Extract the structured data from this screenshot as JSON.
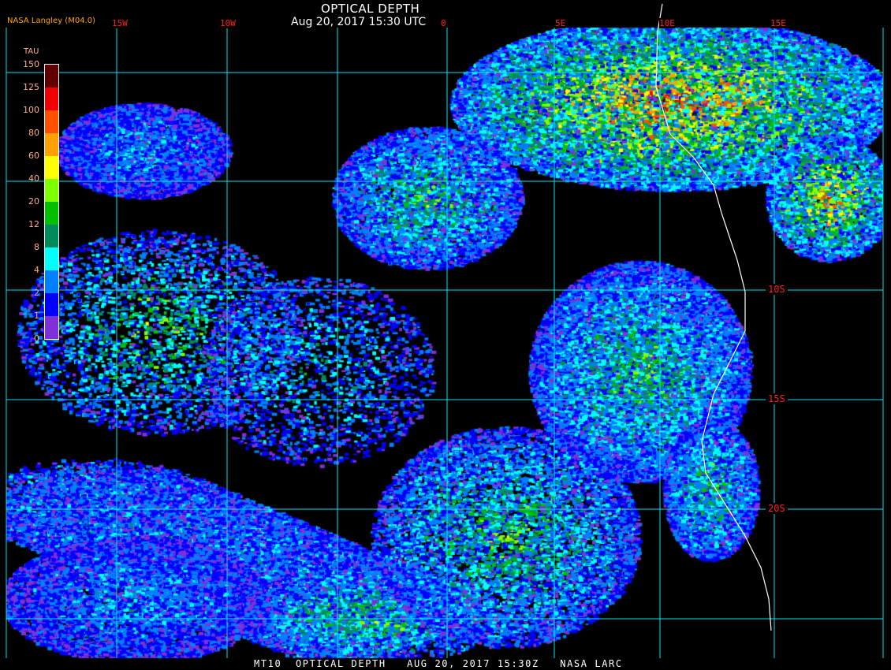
{
  "header": {
    "title": "OPTICAL DEPTH",
    "datetime": "Aug 20, 2017 15:30 UTC",
    "producer": "NASA Langley (M04.0)"
  },
  "footer": "MT10  OPTICAL DEPTH   AUG 20, 2017 15:30Z   NASA LARC",
  "longitude_labels": [
    "15W",
    "10W",
    "0",
    "5E",
    "10E",
    "15E"
  ],
  "latitude_labels": [
    "10S",
    "15S",
    "20S"
  ],
  "legend": {
    "title": "TAU",
    "ticks": [
      "150",
      "125",
      "100",
      "80",
      "60",
      "40",
      "20",
      "12",
      "8",
      "4",
      "2",
      "1",
      "0"
    ],
    "colors": [
      "#600000",
      "#f00000",
      "#ff5000",
      "#ffa000",
      "#ffff00",
      "#80ff00",
      "#00c000",
      "#008c5a",
      "#00ffff",
      "#0080ff",
      "#0000ff",
      "#8030d8"
    ]
  },
  "colors": {
    "grid": "#00e5ee",
    "coastline": "#ffffff",
    "label": "#ff2020"
  }
}
